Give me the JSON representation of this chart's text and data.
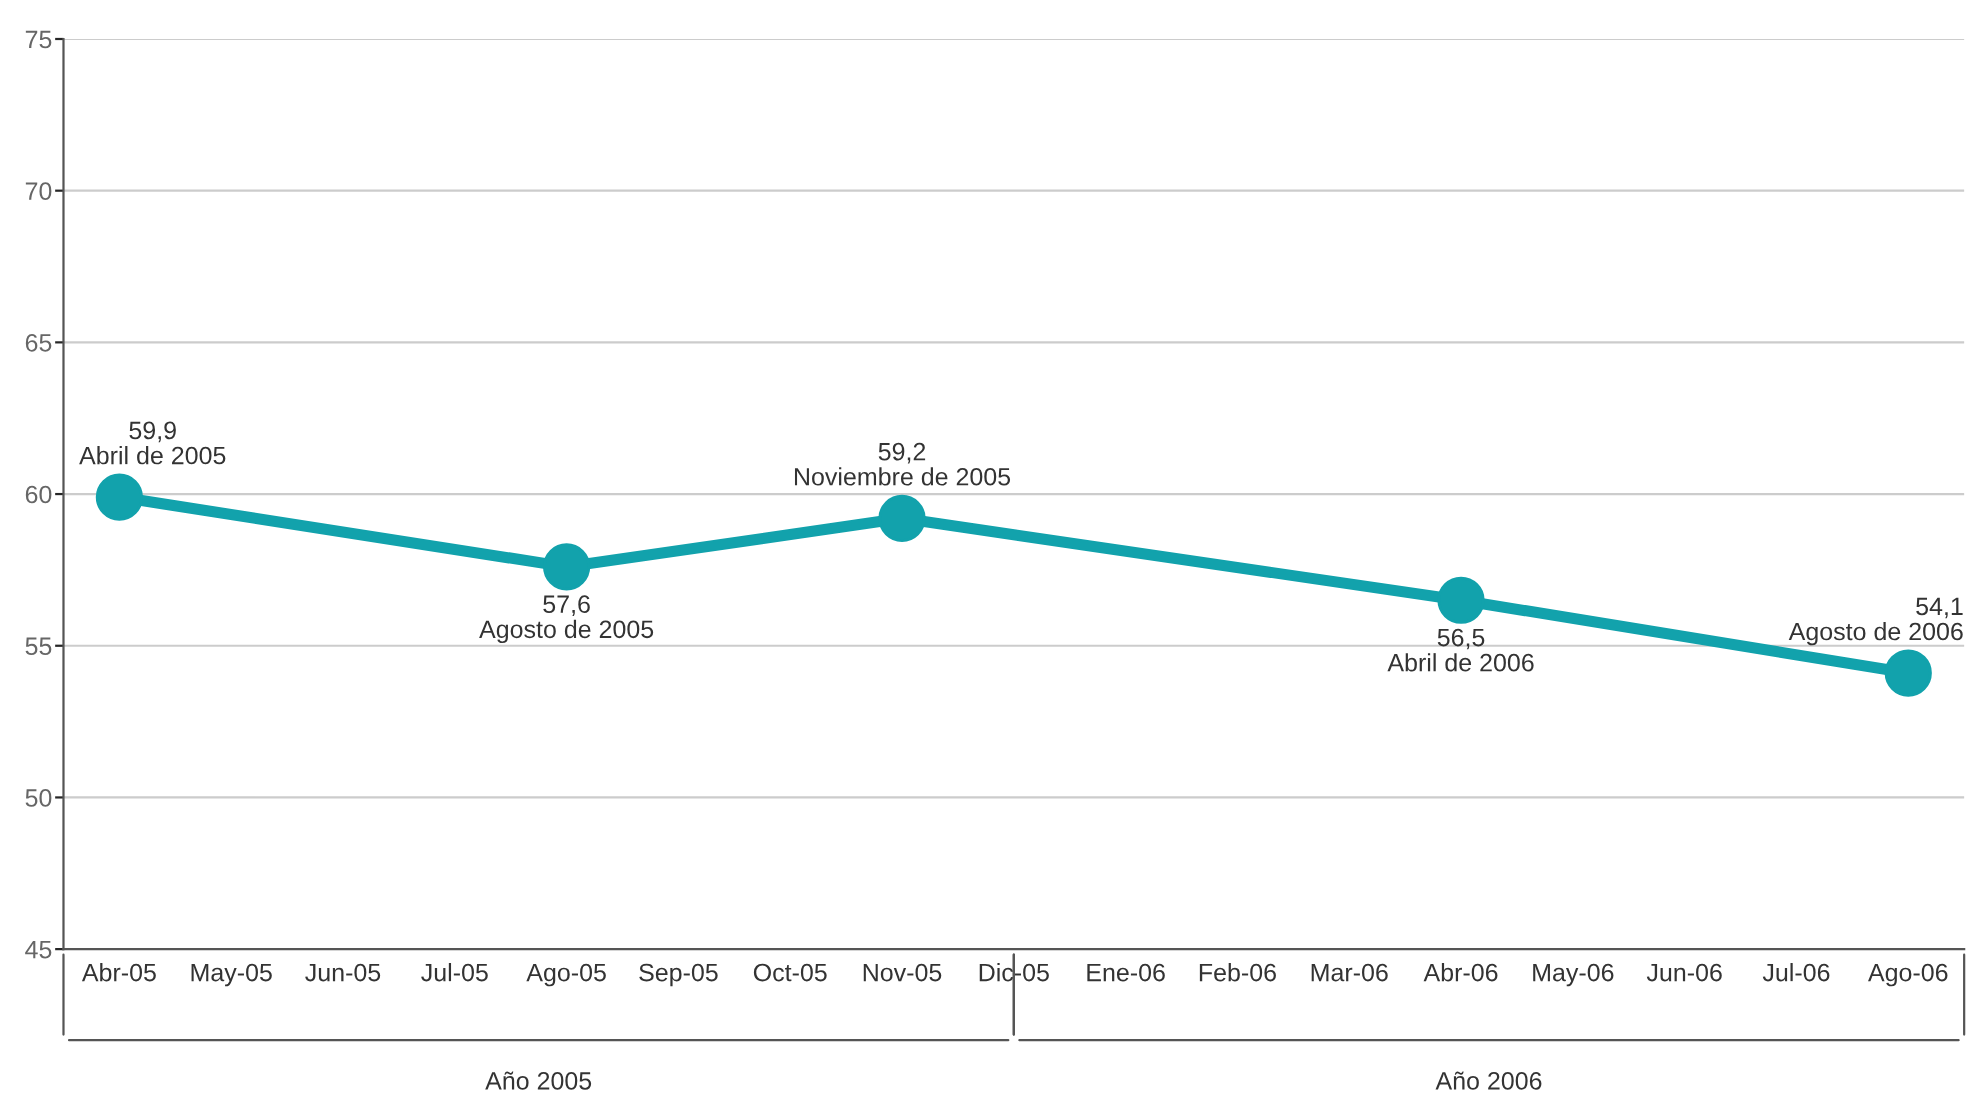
{
  "chart_data": {
    "type": "line",
    "categories": [
      "Abr-05",
      "May-05",
      "Jun-05",
      "Jul-05",
      "Ago-05",
      "Sep-05",
      "Oct-05",
      "Nov-05",
      "Dic-05",
      "Ene-06",
      "Feb-06",
      "Mar-06",
      "Abr-06",
      "May-06",
      "Jun-06",
      "Jul-06",
      "Ago-06"
    ],
    "series": [
      {
        "color": "#12a2ac",
        "values": [
          59.9,
          null,
          null,
          null,
          57.6,
          null,
          null,
          59.2,
          null,
          null,
          null,
          null,
          56.5,
          null,
          null,
          null,
          54.1
        ],
        "value_labels": [
          "59,9",
          null,
          null,
          null,
          "57,6",
          null,
          null,
          "59,2",
          null,
          null,
          null,
          null,
          "56,5",
          null,
          null,
          null,
          "54,1"
        ]
      }
    ],
    "ylim": [
      45,
      75
    ],
    "yticks": [
      45,
      50,
      55,
      60,
      65,
      70,
      75
    ],
    "grid": "y",
    "marker": "circle",
    "line_style": "solid",
    "legend": false,
    "annotations": [
      {
        "text": "Abril de 2005",
        "x": "Abr-05",
        "y": 59.9
      },
      {
        "text": "Agosto de 2005",
        "x": "Ago-05",
        "y": 57.6
      },
      {
        "text": "Noviembre de 2005",
        "x": "Nov-05",
        "y": 59.2
      },
      {
        "text": "Abril de 2006",
        "x": "Abr-06",
        "y": 56.5
      },
      {
        "text": "Agosto de 2006",
        "x": "Ago-06",
        "y": 54.1
      },
      "Año 2005",
      "Año 2006"
    ]
  }
}
